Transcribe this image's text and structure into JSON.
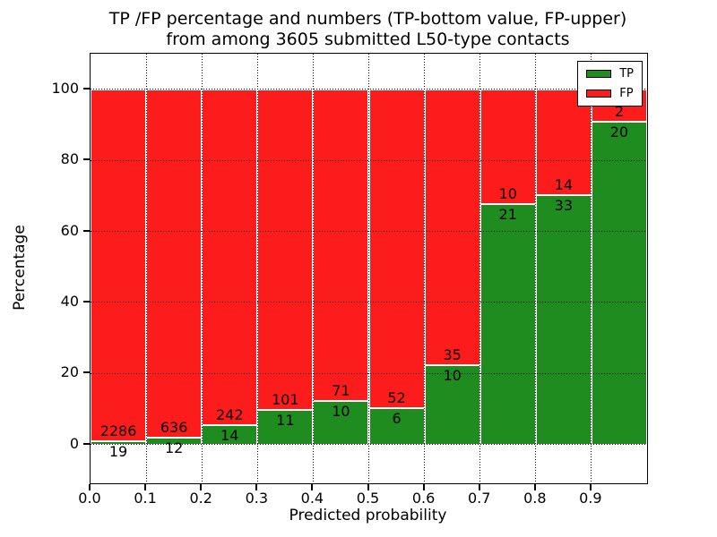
{
  "figure": {
    "title_line1": "TP /FP percentage and numbers (TP-bottom value, FP-upper)",
    "title_line2": "from among 3605 submitted L50-type contacts"
  },
  "chart_data": {
    "type": "bar",
    "subtype": "stacked-percentage",
    "title": "TP /FP percentage and numbers (TP-bottom value, FP-upper) from among 3605 submitted L50-type contacts",
    "xlabel": "Predicted probability",
    "ylabel": "Percentage",
    "total_contacts": 3605,
    "bin_width": 0.1,
    "bin_starts": [
      0.0,
      0.1,
      0.2,
      0.3,
      0.4,
      0.5,
      0.6,
      0.7,
      0.8,
      0.9
    ],
    "series": [
      {
        "name": "TP",
        "color": "#1e8c1e",
        "counts": [
          19,
          12,
          14,
          11,
          10,
          6,
          10,
          21,
          33,
          20
        ]
      },
      {
        "name": "FP",
        "color": "#fd1c1c",
        "counts": [
          2286,
          636,
          242,
          101,
          71,
          52,
          35,
          10,
          14,
          2
        ]
      }
    ],
    "tp_percent": [
      0.82,
      1.85,
      5.47,
      9.82,
      12.35,
      10.34,
      22.22,
      67.74,
      70.21,
      90.91
    ],
    "x_tick_labels": [
      "0.0",
      "0.1",
      "0.2",
      "0.3",
      "0.4",
      "0.5",
      "0.6",
      "0.7",
      "0.8",
      "0.9"
    ],
    "y_ticks": [
      0,
      20,
      40,
      60,
      80,
      100
    ],
    "xlim": [
      0.0,
      1.0
    ],
    "ylim": [
      -10.9,
      110
    ],
    "grid": "dotted-black-both-axes-above-bars",
    "bar_edge_color": "#ffffff",
    "legend": {
      "position": "upper-right",
      "entries": [
        {
          "label": "TP",
          "color": "#1e8c1e"
        },
        {
          "label": "FP",
          "color": "#fd1c1c"
        }
      ]
    }
  }
}
